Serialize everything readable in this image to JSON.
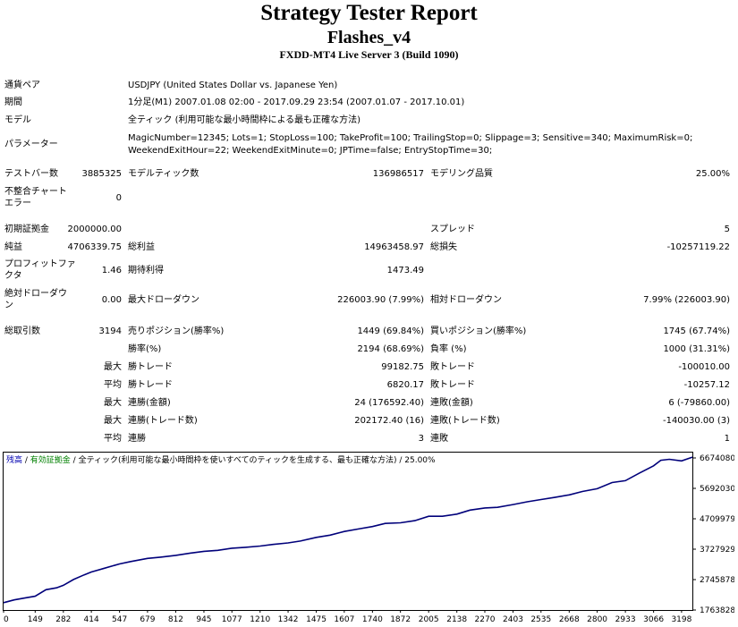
{
  "header": {
    "title": "Strategy Tester Report",
    "ea_name": "Flashes_v4",
    "server": "FXDD-MT4 Live Server 3 (Build 1090)"
  },
  "settings": {
    "symbol_label": "通貨ペア",
    "symbol_value": "USDJPY (United States Dollar vs. Japanese Yen)",
    "period_label": "期間",
    "period_value": "1分足(M1) 2007.01.08 02:00 - 2017.09.29 23:54 (2007.01.07 - 2017.10.01)",
    "model_label": "モデル",
    "model_value": "全ティック (利用可能な最小時間枠による最も正確な方法)",
    "params_label": "パラメーター",
    "params_line1": "MagicNumber=12345; Lots=1; StopLoss=100; TakeProfit=100; TrailingStop=0; Slippage=3; Sensitive=340; MaximumRisk=0;",
    "params_line2": "WeekendExitHour=22; WeekendExitMinute=0; JPTime=false; EntryStopTime=30;"
  },
  "bars": {
    "bars_label": "テストバー数",
    "bars_value": "3885325",
    "ticks_label": "モデルティック数",
    "ticks_value": "136986517",
    "quality_label": "モデリング品質",
    "quality_value": "25.00%",
    "mismatch_label1": "不整合チャート",
    "mismatch_label2": "エラー",
    "mismatch_value": "0"
  },
  "results": {
    "deposit_label": "初期証拠金",
    "deposit_value": "2000000.00",
    "spread_label": "スプレッド",
    "spread_value": "5",
    "net_label": "純益",
    "net_value": "4706339.75",
    "gross_profit_label": "総利益",
    "gross_profit_value": "14963458.97",
    "gross_loss_label": "総損失",
    "gross_loss_value": "-10257119.22",
    "pf_label1": "プロフィットファ",
    "pf_label2": "クタ",
    "pf_value": "1.46",
    "exp_label": "期待利得",
    "exp_value": "1473.49",
    "abs_dd_label1": "絶対ドローダウ",
    "abs_dd_label2": "ン",
    "abs_dd_value": "0.00",
    "max_dd_label": "最大ドローダウン",
    "max_dd_value": "226003.90 (7.99%)",
    "rel_dd_label": "相対ドローダウン",
    "rel_dd_value": "7.99% (226003.90)"
  },
  "trades": {
    "total_label": "総取引数",
    "total_value": "3194",
    "short_label": "売りポジション(勝率%)",
    "short_value": "1449 (69.84%)",
    "long_label": "買いポジション(勝率%)",
    "long_value": "1745 (67.74%)",
    "win_label": "勝率(%)",
    "win_value": "2194 (68.69%)",
    "loss_label": "負率 (%)",
    "loss_value": "1000 (31.31%)",
    "max_label": "最大",
    "avg_label": "平均",
    "largest_win_label": "勝トレード",
    "largest_win_value": "99182.75",
    "largest_loss_label": "敗トレード",
    "largest_loss_value": "-100010.00",
    "avg_win_label": "勝トレード",
    "avg_win_value": "6820.17",
    "avg_loss_label": "敗トレード",
    "avg_loss_value": "-10257.12",
    "max_consec_win_money_label": "連勝(金額)",
    "max_consec_win_money_value": "24 (176592.40)",
    "max_consec_loss_money_label": "連敗(金額)",
    "max_consec_loss_money_value": "6 (-79860.00)",
    "max_consec_win_count_label": "連勝(トレード数)",
    "max_consec_win_count_value": "202172.40 (16)",
    "max_consec_loss_count_label": "連敗(トレード数)",
    "max_consec_loss_count_value": "-140030.00 (3)",
    "avg_consec_win_label": "連勝",
    "avg_consec_win_value": "3",
    "avg_consec_loss_label": "連敗",
    "avg_consec_loss_value": "1"
  },
  "chart_legend": {
    "balance": "残高",
    "sep1": " / ",
    "equity": "有効証拠金",
    "sep2": " / ",
    "model": "全ティック(利用可能な最小時間枠を使いすべてのティックを生成する、最も正確な方法) / 25.00%",
    "balance_color": "#0000b0",
    "equity_color": "#008000"
  },
  "chart_data": {
    "type": "line",
    "xlabel": "",
    "ylabel": "",
    "xlim": [
      0,
      3249
    ],
    "ylim": [
      1763828,
      6674080
    ],
    "x_ticks": [
      0,
      149,
      282,
      414,
      547,
      679,
      812,
      945,
      1077,
      1210,
      1342,
      1475,
      1607,
      1740,
      1872,
      2005,
      2138,
      2270,
      2403,
      2535,
      2668,
      2800,
      2933,
      3066,
      3198
    ],
    "y_ticks": [
      1763828,
      2745878,
      3727929,
      4709979,
      5692030,
      6674080
    ],
    "line_color": "#00007a",
    "series": [
      {
        "x": [
          0,
          50,
          100,
          149,
          200,
          250,
          282,
          330,
          380,
          414,
          470,
          547,
          600,
          679,
          740,
          812,
          880,
          945,
          1010,
          1077,
          1140,
          1210,
          1270,
          1342,
          1400,
          1475,
          1540,
          1607,
          1680,
          1740,
          1800,
          1872,
          1940,
          2005,
          2070,
          2138,
          2200,
          2270,
          2330,
          2403,
          2470,
          2535,
          2600,
          2668,
          2730,
          2800,
          2870,
          2933,
          3000,
          3066,
          3100,
          3140,
          3198,
          3249
        ],
        "values": [
          2000000,
          2090000,
          2150000,
          2210000,
          2420000,
          2480000,
          2560000,
          2750000,
          2900000,
          2990000,
          3100000,
          3250000,
          3330000,
          3430000,
          3470000,
          3530000,
          3600000,
          3660000,
          3690000,
          3760000,
          3790000,
          3830000,
          3880000,
          3930000,
          3990000,
          4110000,
          4180000,
          4300000,
          4390000,
          4460000,
          4560000,
          4580000,
          4650000,
          4790000,
          4790000,
          4860000,
          4990000,
          5060000,
          5080000,
          5170000,
          5260000,
          5330000,
          5400000,
          5480000,
          5590000,
          5680000,
          5880000,
          5940000,
          6190000,
          6420000,
          6600000,
          6630000,
          6580000,
          6700000
        ]
      }
    ]
  }
}
